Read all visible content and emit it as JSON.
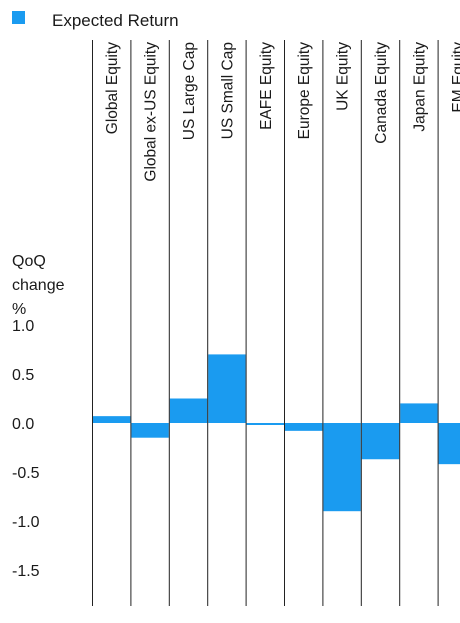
{
  "chart_data": {
    "type": "bar",
    "legend": {
      "label": "Expected Return",
      "color": "#1a9bf0",
      "placement": "top-left"
    },
    "ylabel": [
      "QoQ",
      "change",
      "%"
    ],
    "ylim": [
      -1.75,
      1.25
    ],
    "yticks": [
      1.0,
      0.5,
      0.0,
      -0.5,
      -1.0,
      -1.5
    ],
    "ytick_labels": [
      "1.0",
      "0.5",
      "0.0",
      "-0.5",
      "-1.0",
      "-1.5"
    ],
    "categories": [
      "Global Equity",
      "Global ex-US Equity",
      "US Large Cap",
      "US Small Cap",
      "EAFE Equity",
      "Europe Equity",
      "UK Equity",
      "Canada Equity",
      "Japan Equity",
      "EM Equity"
    ],
    "series": [
      {
        "name": "Expected Return",
        "color": "#1a9bf0",
        "values": [
          0.07,
          -0.15,
          0.25,
          0.7,
          -0.02,
          -0.08,
          -0.9,
          -0.37,
          0.2,
          -0.42
        ]
      }
    ]
  }
}
